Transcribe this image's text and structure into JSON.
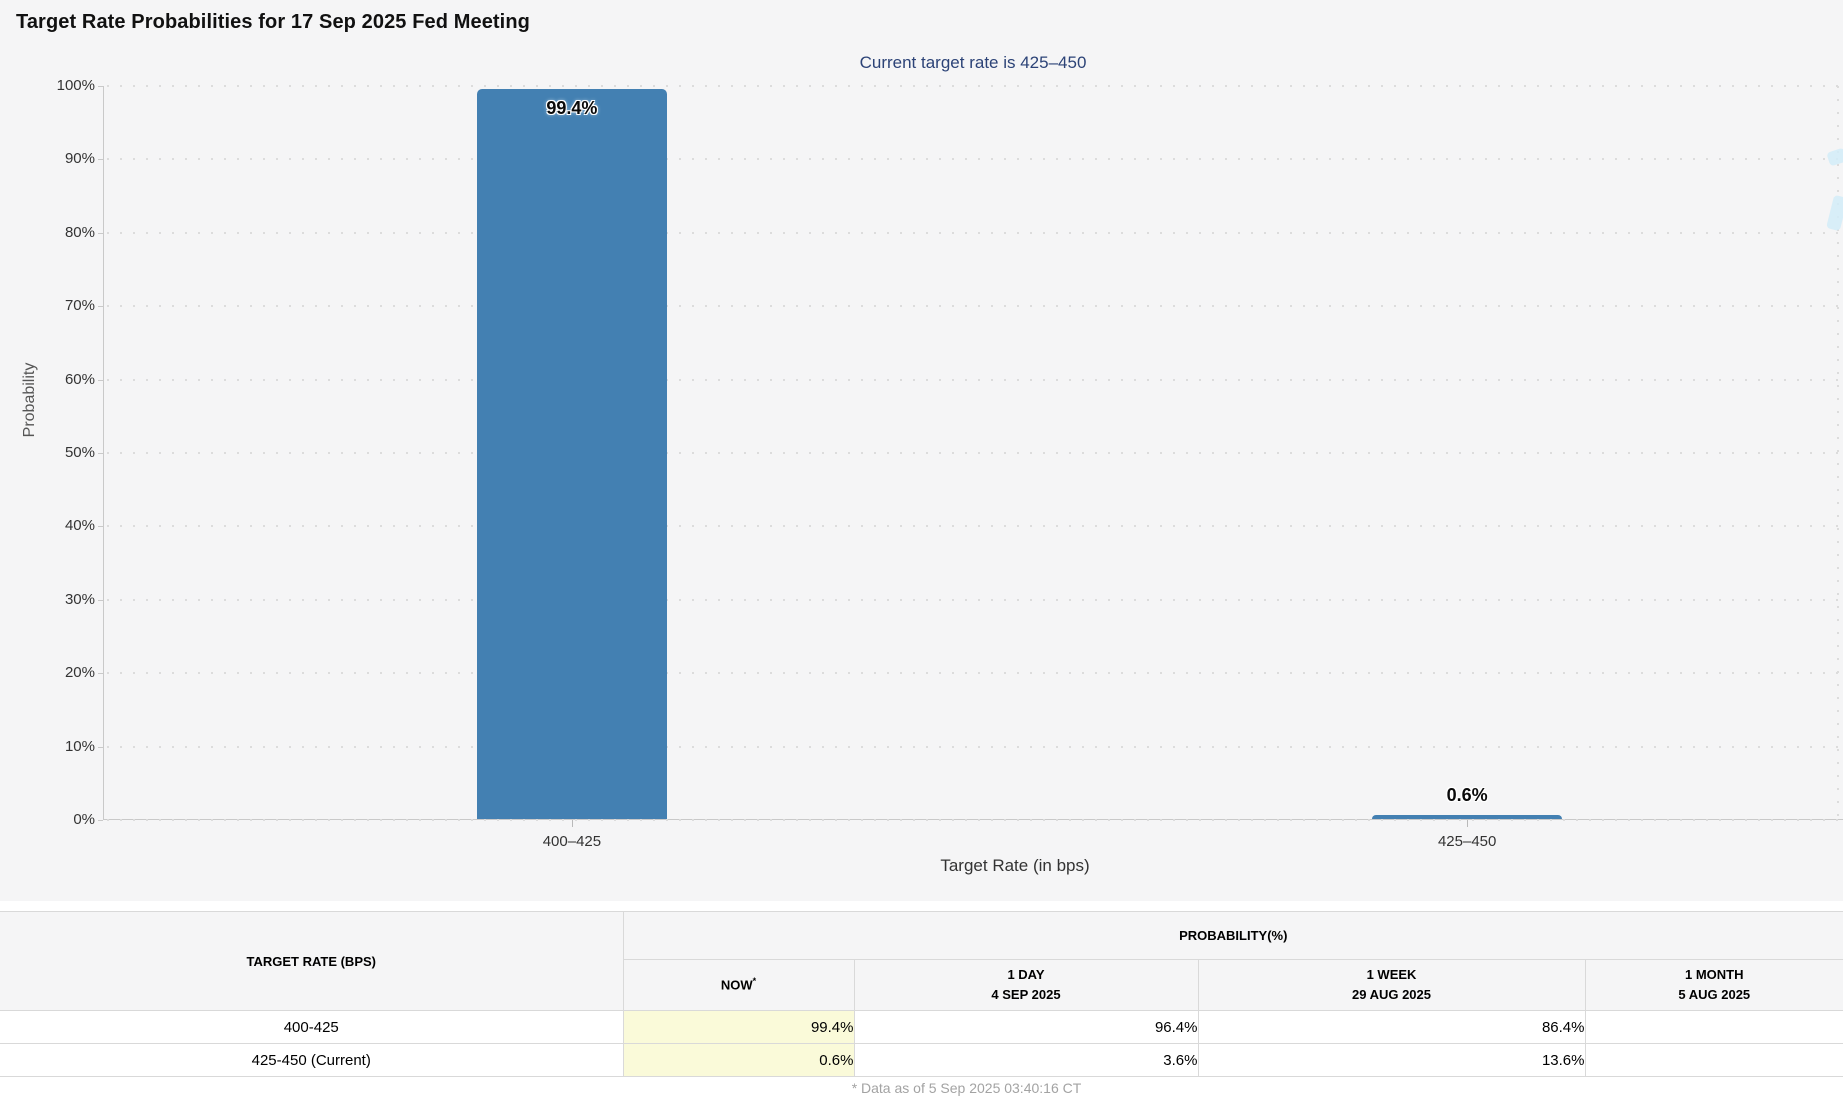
{
  "chart": {
    "title": "Target Rate Probabilities for 17 Sep 2025 Fed Meeting",
    "subtitle": "Current target rate is 425–450",
    "ylabel": "Probability",
    "xlabel": "Target Rate (in bps)"
  },
  "chart_data": {
    "type": "bar",
    "title": "Target Rate Probabilities for 17 Sep 2025 Fed Meeting",
    "subtitle": "Current target rate is 425–450",
    "categories": [
      "400–425",
      "425–450"
    ],
    "values": [
      99.4,
      0.6
    ],
    "value_labels": [
      "99.4%",
      "0.6%"
    ],
    "xlabel": "Target Rate (in bps)",
    "ylabel": "Probability",
    "ylim": [
      0,
      100
    ],
    "ytick_step": 10,
    "ytick_suffix": "%",
    "grid": "dotted-horizontal",
    "legend": "none",
    "bar_color": "#4380b2"
  },
  "table": {
    "corner_header": "TARGET RATE (BPS)",
    "group_header": "PROBABILITY(%)",
    "columns": [
      {
        "period": "NOW",
        "sup": "*",
        "date": ""
      },
      {
        "period": "1 DAY",
        "sup": "",
        "date": "4 SEP 2025"
      },
      {
        "period": "1 WEEK",
        "sup": "",
        "date": "29 AUG 2025"
      },
      {
        "period": "1 MONTH",
        "sup": "",
        "date": "5 AUG 2025"
      }
    ],
    "rows": [
      {
        "rate": "400-425",
        "values": [
          "99.4%",
          "96.4%",
          "86.4%",
          ""
        ]
      },
      {
        "rate": "425-450 (Current)",
        "values": [
          "0.6%",
          "3.6%",
          "13.6%",
          ""
        ]
      }
    ]
  },
  "footer": {
    "note": "* Data as of 5 Sep 2025 03:40:16 CT"
  },
  "colors": {
    "bar": "#4380b2",
    "subtitle_text": "#2c4377",
    "now_highlight": "#fafad9",
    "panel_bg": "#f5f5f6"
  }
}
